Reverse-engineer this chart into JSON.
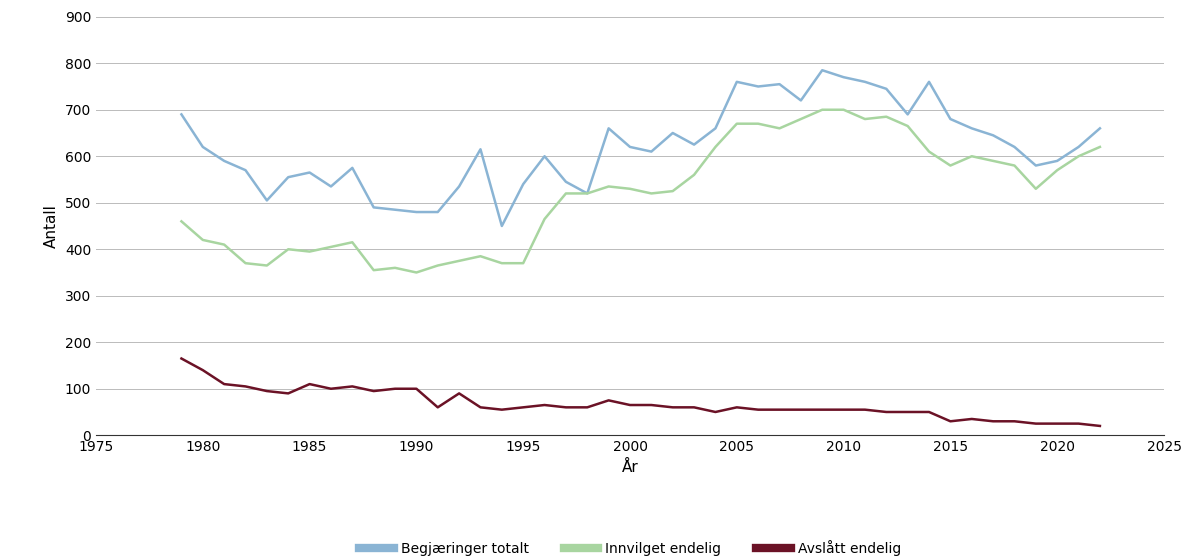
{
  "xlabel": "År",
  "ylabel": "Antall",
  "xlim": [
    1975,
    2025
  ],
  "ylim": [
    0,
    900
  ],
  "yticks": [
    0,
    100,
    200,
    300,
    400,
    500,
    600,
    700,
    800,
    900
  ],
  "xticks": [
    1975,
    1980,
    1985,
    1990,
    1995,
    2000,
    2005,
    2010,
    2015,
    2020,
    2025
  ],
  "color_blue": "#8ab4d4",
  "color_green": "#a8d5a0",
  "color_dark_red": "#6b1226",
  "years": [
    1979,
    1980,
    1981,
    1982,
    1983,
    1984,
    1985,
    1986,
    1987,
    1988,
    1989,
    1990,
    1991,
    1992,
    1993,
    1994,
    1995,
    1996,
    1997,
    1998,
    1999,
    2000,
    2001,
    2002,
    2003,
    2004,
    2005,
    2006,
    2007,
    2008,
    2009,
    2010,
    2011,
    2012,
    2013,
    2014,
    2015,
    2016,
    2017,
    2018,
    2019,
    2020,
    2021,
    2022
  ],
  "begjaeringer_totalt": [
    690,
    620,
    590,
    570,
    505,
    555,
    565,
    535,
    575,
    490,
    485,
    480,
    480,
    535,
    615,
    450,
    540,
    600,
    545,
    520,
    660,
    620,
    610,
    650,
    625,
    660,
    760,
    750,
    755,
    720,
    785,
    770,
    760,
    745,
    690,
    760,
    680,
    660,
    645,
    620,
    580,
    590,
    620,
    660
  ],
  "innvilget_endelig": [
    460,
    420,
    410,
    370,
    365,
    400,
    395,
    405,
    415,
    355,
    360,
    350,
    365,
    375,
    385,
    370,
    370,
    465,
    520,
    520,
    535,
    530,
    520,
    525,
    560,
    620,
    670,
    670,
    660,
    680,
    700,
    700,
    680,
    685,
    665,
    610,
    580,
    600,
    590,
    580,
    530,
    570,
    600,
    620
  ],
  "avslaatt_endelig": [
    165,
    140,
    110,
    105,
    95,
    90,
    110,
    100,
    105,
    95,
    100,
    100,
    60,
    90,
    60,
    55,
    60,
    65,
    60,
    60,
    75,
    65,
    65,
    60,
    60,
    50,
    60,
    55,
    55,
    55,
    55,
    55,
    55,
    50,
    50,
    50,
    30,
    35,
    30,
    30,
    25,
    25,
    25,
    20
  ],
  "legend_labels": [
    "Begjæringer totalt",
    "Innvilget endelig",
    "Avslått endelig"
  ],
  "figsize": [
    12.0,
    5.58
  ],
  "dpi": 100
}
